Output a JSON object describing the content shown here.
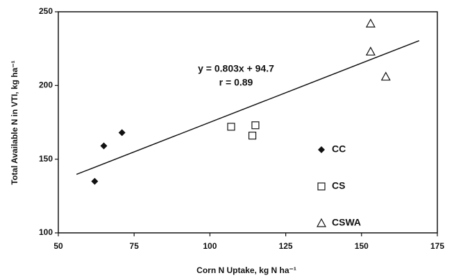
{
  "chart_data": {
    "type": "scatter",
    "xlabel": "Corn N Uptake, kg N ha⁻¹",
    "ylabel": "Total Available N in VTI, kg ha⁻¹",
    "annotations": [
      "y = 0.803x + 94.7",
      "r = 0.89"
    ],
    "xlim": [
      50,
      175
    ],
    "xticks": [
      50,
      75,
      100,
      125,
      150,
      175
    ],
    "ylim": [
      100,
      250
    ],
    "yticks": [
      100,
      150,
      200,
      250
    ],
    "series": [
      {
        "name": "CC",
        "color": "#111111",
        "marker": "diamond",
        "x": [
          62,
          65,
          71
        ],
        "values": [
          135,
          159,
          168
        ]
      },
      {
        "name": "CS",
        "color": "#111111",
        "marker": "square",
        "x": [
          107,
          114,
          115
        ],
        "values": [
          172,
          166,
          173
        ]
      },
      {
        "name": "CSWA",
        "color": "#111111",
        "marker": "triangle",
        "x": [
          153,
          153,
          158
        ],
        "values": [
          242,
          223,
          206
        ]
      }
    ],
    "trendline": {
      "x": [
        56,
        169
      ],
      "values": [
        139.7,
        230.4
      ]
    }
  }
}
